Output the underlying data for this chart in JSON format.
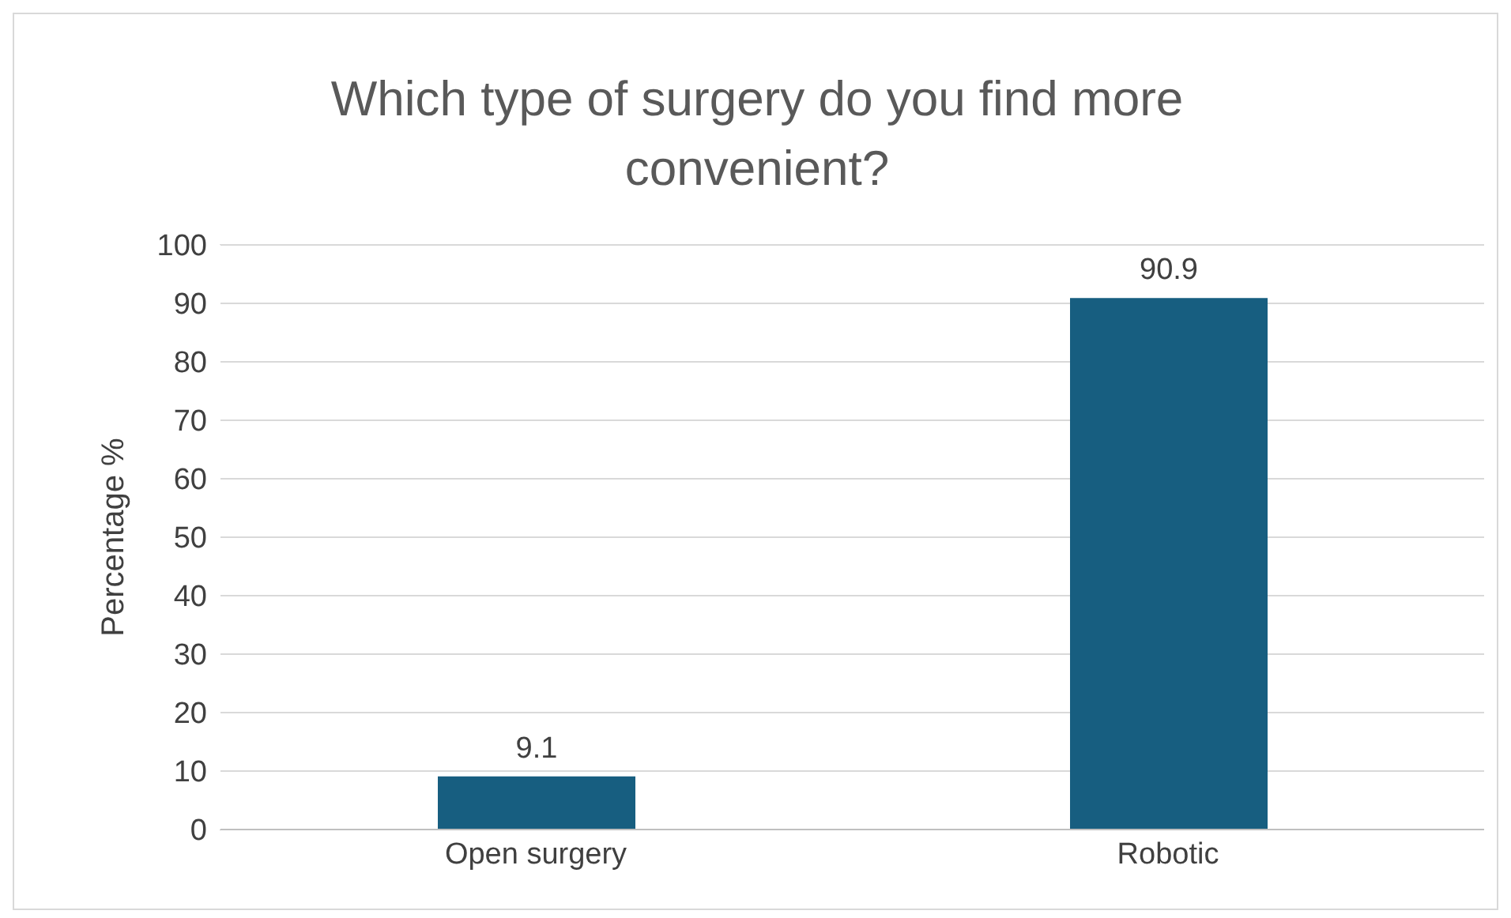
{
  "chart_data": {
    "type": "bar",
    "title": "Which type of surgery do you find more convenient?",
    "ylabel": "Percentage %",
    "categories": [
      "Open surgery",
      "Robotic"
    ],
    "values": [
      9.1,
      90.9
    ],
    "color": "#175e80",
    "ylim": [
      0,
      100
    ],
    "yticks": [
      0,
      10,
      20,
      30,
      40,
      50,
      60,
      70,
      80,
      90,
      100
    ],
    "grid": "y",
    "data_labels": true
  }
}
